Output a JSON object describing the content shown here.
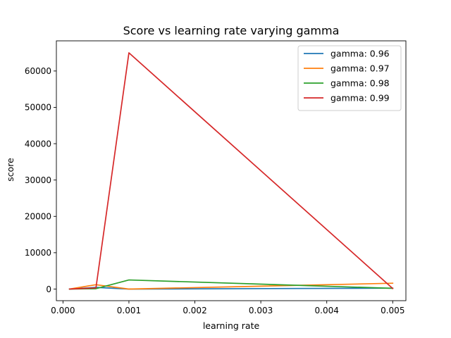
{
  "chart_data": {
    "type": "line",
    "title": "Score vs learning rate varying gamma",
    "xlabel": "learning rate",
    "ylabel": "score",
    "xlim": [
      -0.0001,
      0.0052
    ],
    "ylim": [
      -3200,
      68300
    ],
    "xticks": [
      0.0,
      0.001,
      0.002,
      0.003,
      0.004,
      0.005
    ],
    "xtick_labels": [
      "0.000",
      "0.001",
      "0.002",
      "0.003",
      "0.004",
      "0.005"
    ],
    "yticks": [
      0,
      10000,
      20000,
      30000,
      40000,
      50000,
      60000
    ],
    "ytick_labels": [
      "0",
      "10000",
      "20000",
      "30000",
      "40000",
      "50000",
      "60000"
    ],
    "grid": false,
    "legend_position": "top-right",
    "x": [
      0.0001,
      0.0005,
      0.001,
      0.005
    ],
    "series": [
      {
        "name": "gamma: 0.96",
        "color": "#1f77b4",
        "values": [
          0,
          450,
          0,
          250
        ]
      },
      {
        "name": "gamma: 0.97",
        "color": "#ff7f0e",
        "values": [
          0,
          1200,
          0,
          1600
        ]
      },
      {
        "name": "gamma: 0.98",
        "color": "#2ca02c",
        "values": [
          0,
          100,
          2500,
          200
        ]
      },
      {
        "name": "gamma: 0.99",
        "color": "#d62728",
        "values": [
          0,
          300,
          65000,
          150
        ]
      }
    ]
  }
}
